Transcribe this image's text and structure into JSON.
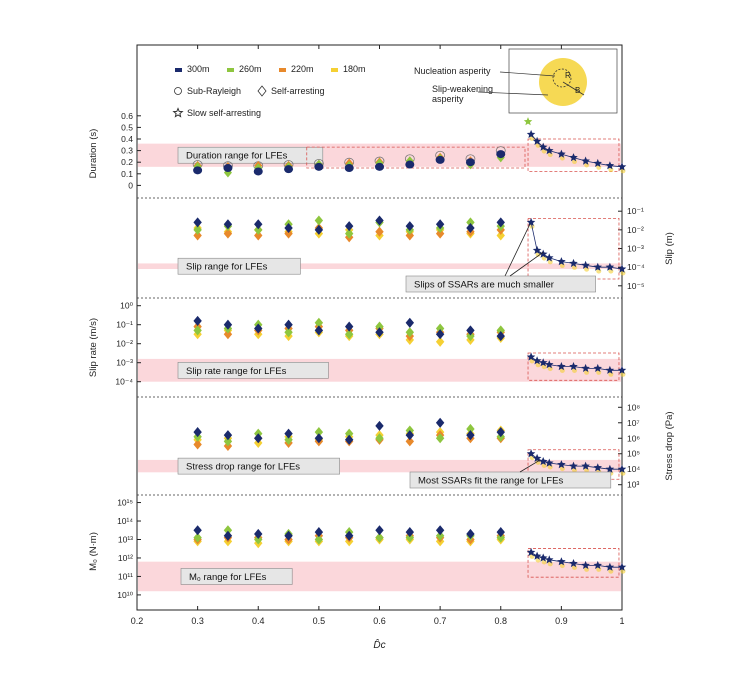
{
  "chart_data": {
    "type": "scatter",
    "xlabel": "D̂c",
    "xlim": [
      0.2,
      1
    ],
    "x_ticks": [
      "0.2",
      "0.3",
      "0.4",
      "0.5",
      "0.6",
      "0.7",
      "0.8",
      "0.9",
      "1"
    ],
    "legend": {
      "placement": "top-left",
      "series": [
        {
          "name": "300m",
          "color": "#1a2a6c"
        },
        {
          "name": "260m",
          "color": "#8ec63f"
        },
        {
          "name": "220m",
          "color": "#e8892b"
        },
        {
          "name": "180m",
          "color": "#f5d033"
        }
      ],
      "markers": [
        {
          "label": "Sub-Rayleigh",
          "marker": "circle"
        },
        {
          "label": "Self-arresting",
          "marker": "diamond"
        },
        {
          "label": "Slow self-arresting",
          "marker": "star"
        }
      ]
    },
    "inset": {
      "labels": [
        "Nucleation asperity",
        "Slip-weakening",
        "asperity"
      ],
      "r_label": "R",
      "b_label": "B"
    },
    "x_main": [
      0.3,
      0.35,
      0.4,
      0.45,
      0.5,
      0.55,
      0.6,
      0.65,
      0.7,
      0.75,
      0.8
    ],
    "x_ssar": [
      0.85,
      0.86,
      0.87,
      0.88,
      0.9,
      0.92,
      0.94,
      0.96,
      0.98,
      1.0
    ],
    "panels": [
      {
        "id": "duration",
        "ylabel": "Duration (s)",
        "axis": "left",
        "scale": "linear",
        "ylim": [
          -0.1,
          0.65
        ],
        "ticks": [
          "0",
          "0.1",
          "0.2",
          "0.3",
          "0.4",
          "0.5",
          "0.6"
        ],
        "band_label": "Duration range for LFEs",
        "band": [
          0.16,
          0.36
        ],
        "series": {
          "300m": [
            0.13,
            0.15,
            0.12,
            0.14,
            0.16,
            0.15,
            0.16,
            0.18,
            0.22,
            0.2,
            0.27
          ],
          "260m": [
            0.16,
            0.11,
            0.15,
            0.16,
            0.18,
            0.17,
            0.19,
            0.21,
            0.23,
            0.18,
            0.24
          ],
          "220m": [
            0.17,
            0.16,
            0.17,
            0.17,
            0.18,
            0.19,
            0.2,
            0.2,
            0.24,
            0.21,
            0.26
          ],
          "180m": [
            0.18,
            0.17,
            0.17,
            0.18,
            0.19,
            0.2,
            0.21,
            0.23,
            0.26,
            0.23,
            0.3
          ]
        },
        "ssar": [
          0.44,
          0.38,
          0.33,
          0.3,
          0.27,
          0.24,
          0.21,
          0.19,
          0.17,
          0.16
        ]
      },
      {
        "id": "slip",
        "ylabel": "Slip (m)",
        "axis": "right",
        "scale": "log",
        "ylim": [
          -5.6,
          -0.4
        ],
        "ticks": [
          "10⁻¹",
          "10⁻²",
          "10⁻³",
          "10⁻⁴",
          "10⁻⁵"
        ],
        "band_label": "Slip range for LFEs",
        "band": [
          -4.1,
          -3.8
        ],
        "annotation": "Slips of SSARs are much smaller",
        "series": {
          "300m": [
            -1.6,
            -1.7,
            -1.7,
            -1.9,
            -2.0,
            -1.8,
            -1.5,
            -1.8,
            -1.7,
            -1.9,
            -1.6
          ],
          "260m": [
            -2.0,
            -1.8,
            -2.0,
            -1.7,
            -1.5,
            -2.2,
            -1.6,
            -2.0,
            -1.9,
            -1.6,
            -1.8
          ],
          "220m": [
            -2.3,
            -2.2,
            -2.3,
            -2.2,
            -1.9,
            -2.4,
            -2.1,
            -2.3,
            -2.2,
            -2.1,
            -2.0
          ],
          "180m": [
            -1.9,
            -2.1,
            -2.0,
            -2.1,
            -2.2,
            -2.0,
            -2.3,
            -2.1,
            -2.0,
            -2.2,
            -2.3
          ]
        },
        "ssar": [
          -1.6,
          -3.1,
          -3.3,
          -3.5,
          -3.7,
          -3.8,
          -3.9,
          -4.0,
          -4.0,
          -4.1
        ]
      },
      {
        "id": "sliprate",
        "ylabel": "Slip rate (m/s)",
        "axis": "left",
        "scale": "log",
        "ylim": [
          -4.7,
          0.3
        ],
        "ticks": [
          "10⁰",
          "10⁻¹",
          "10⁻²",
          "10⁻³",
          "10⁻⁴"
        ],
        "band_label": "Slip rate range for LFEs",
        "band": [
          -4.0,
          -2.8
        ],
        "series": {
          "300m": [
            -0.8,
            -1.0,
            -1.2,
            -1.0,
            -1.3,
            -1.1,
            -1.4,
            -0.9,
            -1.5,
            -1.3,
            -1.6
          ],
          "260m": [
            -1.3,
            -1.2,
            -1.0,
            -1.4,
            -0.9,
            -1.5,
            -1.1,
            -1.4,
            -1.2,
            -1.6,
            -1.3
          ],
          "220m": [
            -1.1,
            -1.5,
            -1.3,
            -1.2,
            -1.1,
            -1.3,
            -1.2,
            -1.6,
            -1.4,
            -1.5,
            -1.4
          ],
          "180m": [
            -1.5,
            -1.3,
            -1.5,
            -1.6,
            -1.4,
            -1.6,
            -1.5,
            -1.8,
            -1.9,
            -1.8,
            -1.7
          ]
        },
        "ssar": [
          -2.7,
          -2.9,
          -3.0,
          -3.1,
          -3.2,
          -3.2,
          -3.3,
          -3.3,
          -3.4,
          -3.4
        ]
      },
      {
        "id": "stressdrop",
        "ylabel": "Stress drop (Pa)",
        "axis": "right",
        "scale": "log",
        "ylim": [
          2.4,
          8.6
        ],
        "ticks": [
          "10⁸",
          "10⁷",
          "10⁶",
          "10⁵",
          "10⁴",
          "10³"
        ],
        "band_label": "Stress drop range for LFEs",
        "band": [
          3.8,
          4.6
        ],
        "annotation": "Most SSARs fit the range for LFEs",
        "series": {
          "300m": [
            6.4,
            6.2,
            6.0,
            6.3,
            6.0,
            5.9,
            6.8,
            6.2,
            7.0,
            6.2,
            6.4
          ],
          "260m": [
            6.1,
            5.8,
            6.3,
            5.9,
            6.4,
            6.3,
            6.0,
            6.5,
            6.0,
            6.6,
            6.1
          ],
          "220m": [
            5.6,
            5.5,
            6.0,
            5.7,
            5.8,
            5.8,
            5.9,
            5.8,
            6.2,
            6.0,
            6.0
          ],
          "180m": [
            5.9,
            6.0,
            5.7,
            6.1,
            5.9,
            6.1,
            6.2,
            6.3,
            6.4,
            6.3,
            6.5
          ]
        },
        "ssar": [
          5.0,
          4.7,
          4.5,
          4.4,
          4.3,
          4.2,
          4.2,
          4.1,
          4.0,
          4.0
        ]
      },
      {
        "id": "moment",
        "ylabel": "M₀ (N·m)",
        "axis": "left",
        "scale": "log",
        "ylim": [
          9.4,
          15.3
        ],
        "ticks": [
          "10¹⁵",
          "10¹⁴",
          "10¹³",
          "10¹²",
          "10¹¹",
          "10¹⁰"
        ],
        "band_label": "M₀ range for LFEs",
        "band": [
          10.2,
          11.8
        ],
        "series": {
          "300m": [
            13.5,
            13.2,
            13.3,
            13.2,
            13.4,
            13.2,
            13.5,
            13.4,
            13.5,
            13.3,
            13.4
          ],
          "260m": [
            13.1,
            13.5,
            13.0,
            13.3,
            13.0,
            13.4,
            13.1,
            13.1,
            13.2,
            13.2,
            13.1
          ],
          "220m": [
            13.0,
            13.1,
            13.1,
            13.0,
            13.2,
            13.1,
            13.1,
            13.2,
            13.1,
            13.0,
            13.2
          ],
          "180m": [
            12.9,
            12.9,
            12.8,
            12.9,
            12.9,
            12.9,
            13.0,
            13.0,
            12.9,
            12.9,
            13.0
          ]
        },
        "ssar": [
          12.3,
          12.1,
          12.0,
          11.9,
          11.8,
          11.7,
          11.6,
          11.6,
          11.5,
          11.5
        ]
      }
    ]
  }
}
